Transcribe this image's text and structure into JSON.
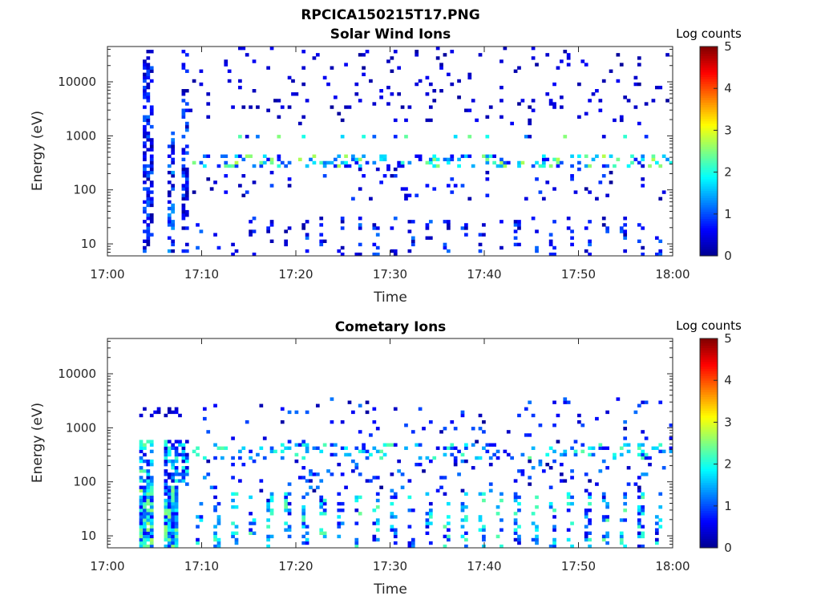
{
  "figure_title": "RPCICA150215T17.PNG",
  "colormap": [
    "#00008f",
    "#0000ff",
    "#0080ff",
    "#00ffff",
    "#80ff80",
    "#ffff00",
    "#ff8000",
    "#ff0000",
    "#800000"
  ],
  "chart_data": [
    {
      "type": "heatmap",
      "title": "Solar Wind Ions",
      "xlabel": "Time",
      "ylabel": "Energy (eV)",
      "x_ticks": [
        "17:00",
        "17:10",
        "17:20",
        "17:30",
        "17:40",
        "17:50",
        "18:00"
      ],
      "y_ticks": [
        "10",
        "100",
        "1000",
        "10000"
      ],
      "xlim": [
        "17:00",
        "18:00"
      ],
      "ylim": [
        6,
        45000
      ],
      "yscale": "log",
      "colorbar": {
        "label": "Log counts",
        "ticks": [
          "0",
          "1",
          "2",
          "3",
          "4",
          "5"
        ],
        "range": [
          0,
          5
        ]
      },
      "grid": false,
      "seed": 7,
      "features": [
        {
          "kind": "block",
          "x": [
            17.0,
            17.0
          ],
          "e": [
            7,
            30
          ],
          "level": [
            0.4,
            2.3
          ]
        },
        {
          "kind": "block",
          "x": [
            17.0,
            17.0
          ],
          "e": [
            250,
            700
          ],
          "level": [
            1.0,
            3.0
          ]
        },
        {
          "kind": "sparse",
          "x": [
            3.8,
            4.8
          ],
          "e": [
            7,
            45000
          ],
          "density": 0.6,
          "level": [
            0.1,
            1.2
          ]
        },
        {
          "kind": "sparse",
          "x": [
            6.5,
            7.3
          ],
          "e": [
            7,
            1200
          ],
          "density": 0.55,
          "level": [
            0.1,
            1.5
          ]
        },
        {
          "kind": "sparse",
          "x": [
            7.8,
            8.6
          ],
          "e": [
            7,
            40000
          ],
          "density": 0.5,
          "level": [
            0.1,
            1.2
          ]
        },
        {
          "kind": "band",
          "x": [
            9.0,
            60.0
          ],
          "e": [
            270,
            450
          ],
          "density": 0.3,
          "level": [
            0.5,
            2.8
          ]
        },
        {
          "kind": "band",
          "x": [
            9.0,
            60.0
          ],
          "e": [
            850,
            1050
          ],
          "density": 0.12,
          "level": [
            0.3,
            2.6
          ]
        },
        {
          "kind": "scatter",
          "x": [
            8.6,
            60.0
          ],
          "e": [
            1500,
            45000
          ],
          "density": 0.05,
          "level": [
            0.05,
            0.6
          ]
        },
        {
          "kind": "scatter",
          "x": [
            8.6,
            60.0
          ],
          "e": [
            60,
            280
          ],
          "density": 0.06,
          "level": [
            0.05,
            1.0
          ]
        },
        {
          "kind": "stripes",
          "x": [
            9.0,
            60.0
          ],
          "e": [
            6,
            30
          ],
          "density": 0.2,
          "level": [
            0.05,
            1.2
          ]
        }
      ]
    },
    {
      "type": "heatmap",
      "title": "Cometary Ions",
      "xlabel": "Time",
      "ylabel": "Energy (eV)",
      "x_ticks": [
        "17:00",
        "17:10",
        "17:20",
        "17:30",
        "17:40",
        "17:50",
        "18:00"
      ],
      "y_ticks": [
        "10",
        "100",
        "1000",
        "10000"
      ],
      "xlim": [
        "17:00",
        "18:00"
      ],
      "ylim": [
        6,
        45000
      ],
      "yscale": "log",
      "colorbar": {
        "label": "Log counts",
        "ticks": [
          "0",
          "1",
          "2",
          "3",
          "4",
          "5"
        ],
        "range": [
          0,
          5
        ]
      },
      "grid": false,
      "seed": 19,
      "features": [
        {
          "kind": "block",
          "x": [
            3.2,
            4.9
          ],
          "e": [
            6,
            80
          ],
          "level": [
            0.6,
            2.7
          ]
        },
        {
          "kind": "sparse",
          "x": [
            3.2,
            4.9
          ],
          "e": [
            80,
            600
          ],
          "density": 0.6,
          "level": [
            0.3,
            2.5
          ]
        },
        {
          "kind": "block",
          "x": [
            6.1,
            7.5
          ],
          "e": [
            6,
            80
          ],
          "level": [
            0.6,
            2.6
          ]
        },
        {
          "kind": "sparse",
          "x": [
            6.1,
            8.8
          ],
          "e": [
            80,
            600
          ],
          "density": 0.55,
          "level": [
            0.3,
            2.2
          ]
        },
        {
          "kind": "sparse",
          "x": [
            3.2,
            8.4
          ],
          "e": [
            1500,
            2400
          ],
          "density": 0.3,
          "level": [
            0.1,
            0.6
          ]
        },
        {
          "kind": "band",
          "x": [
            9.0,
            60.0
          ],
          "e": [
            250,
            500
          ],
          "density": 0.2,
          "level": [
            0.5,
            2.4
          ]
        },
        {
          "kind": "scatter",
          "x": [
            9.0,
            60.0
          ],
          "e": [
            500,
            3500
          ],
          "density": 0.04,
          "level": [
            0.05,
            1.2
          ]
        },
        {
          "kind": "scatter",
          "x": [
            9.0,
            60.0
          ],
          "e": [
            60,
            250
          ],
          "density": 0.08,
          "level": [
            0.05,
            1.4
          ]
        },
        {
          "kind": "stripes",
          "x": [
            9.0,
            60.0
          ],
          "e": [
            6,
            60
          ],
          "density": 0.35,
          "level": [
            0.4,
            2.4
          ]
        }
      ]
    }
  ]
}
